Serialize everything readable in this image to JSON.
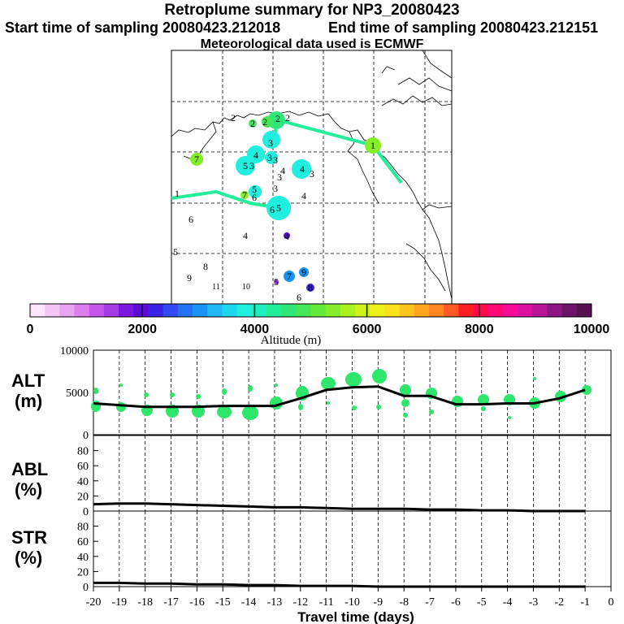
{
  "header": {
    "title": "Retroplume summary for NP3_20080423",
    "start_label": "Start time of sampling 20080423.212018",
    "end_label": "End time of sampling 20080423.212151",
    "met_label": "Meteorological data used is ECMWF"
  },
  "colorbar": {
    "ticks": [
      "0",
      "2000",
      "4000",
      "6000",
      "8000",
      "10000"
    ],
    "label": "Altitude (m)",
    "colors": [
      "#ffe6ff",
      "#f6c6f6",
      "#e9a4f1",
      "#dd7eee",
      "#c555ec",
      "#a33be6",
      "#7a18df",
      "#5a0bd6",
      "#3a22e6",
      "#2f4af2",
      "#2272f4",
      "#1a94f4",
      "#1fb8f2",
      "#1ed6ee",
      "#20eede",
      "#20f0be",
      "#22ee9a",
      "#2ee67a",
      "#46e658",
      "#64ea3a",
      "#86ee28",
      "#a8f21e",
      "#cef21a",
      "#eef01a",
      "#fbe01c",
      "#ffc41c",
      "#ffa61e",
      "#ff8622",
      "#ff5a26",
      "#ff1e22",
      "#ff0a4a",
      "#ff0878",
      "#f60c96",
      "#dc10a0",
      "#b61696",
      "#8e1482",
      "#6c1268",
      "#561050"
    ]
  },
  "map": {
    "labels": [
      {
        "t": "2",
        "x": 287,
        "y": 145
      },
      {
        "t": "2",
        "x": 311,
        "y": 152
      },
      {
        "t": "2",
        "x": 326,
        "y": 150
      },
      {
        "t": "2",
        "x": 342,
        "y": 146
      },
      {
        "t": "2",
        "x": 354,
        "y": 145
      },
      {
        "t": "1",
        "x": 459,
        "y": 179
      },
      {
        "t": "7",
        "x": 242,
        "y": 196
      },
      {
        "t": "3",
        "x": 333,
        "y": 176
      },
      {
        "t": "3",
        "x": 332,
        "y": 194
      },
      {
        "t": "3",
        "x": 339,
        "y": 197
      },
      {
        "t": "4",
        "x": 315,
        "y": 191
      },
      {
        "t": "5",
        "x": 302,
        "y": 204
      },
      {
        "t": "3",
        "x": 310,
        "y": 204
      },
      {
        "t": "4",
        "x": 348,
        "y": 210
      },
      {
        "t": "3",
        "x": 344,
        "y": 218
      },
      {
        "t": "4",
        "x": 372,
        "y": 208
      },
      {
        "t": "3",
        "x": 384,
        "y": 214
      },
      {
        "t": "1",
        "x": 218,
        "y": 238
      },
      {
        "t": "7",
        "x": 301,
        "y": 240
      },
      {
        "t": "5",
        "x": 313,
        "y": 233
      },
      {
        "t": "6",
        "x": 313,
        "y": 243
      },
      {
        "t": "3",
        "x": 339,
        "y": 232
      },
      {
        "t": "4",
        "x": 374,
        "y": 241
      },
      {
        "t": "6",
        "x": 335,
        "y": 258
      },
      {
        "t": "5",
        "x": 343,
        "y": 256
      },
      {
        "t": "6",
        "x": 235,
        "y": 270
      },
      {
        "t": "4",
        "x": 302,
        "y": 290
      },
      {
        "t": "4",
        "x": 353,
        "y": 291
      },
      {
        "t": "5",
        "x": 216,
        "y": 310
      },
      {
        "t": "8",
        "x": 253,
        "y": 328
      },
      {
        "t": "9",
        "x": 233,
        "y": 342
      },
      {
        "t": "9",
        "x": 374,
        "y": 335
      },
      {
        "t": "7",
        "x": 356,
        "y": 340
      },
      {
        "t": "11",
        "x": 266,
        "y": 352
      },
      {
        "t": "10",
        "x": 303,
        "y": 352
      },
      {
        "t": "5",
        "x": 340,
        "y": 347
      },
      {
        "t": "8",
        "x": 382,
        "y": 354
      },
      {
        "t": "6",
        "x": 368,
        "y": 366
      }
    ]
  },
  "panels": {
    "alt": {
      "label1": "ALT",
      "label2": "(m)",
      "ticks": [
        "10000",
        "5000",
        "0"
      ]
    },
    "abl": {
      "label1": "ABL",
      "label2": "(%)",
      "ticks": [
        "80",
        "60",
        "40",
        "20",
        "0"
      ]
    },
    "str": {
      "label1": "STR",
      "label2": "(%)",
      "ticks": [
        "80",
        "60",
        "40",
        "20",
        "0"
      ]
    }
  },
  "xaxis": {
    "title": "Travel time (days)",
    "ticks": [
      "-20",
      "-19",
      "-18",
      "-17",
      "-16",
      "-15",
      "-14",
      "-13",
      "-12",
      "-11",
      "-10",
      "-9",
      "-8",
      "-7",
      "-6",
      "-5",
      "-4",
      "-3",
      "-2",
      "-1",
      "0"
    ]
  },
  "chart_data": [
    {
      "type": "line",
      "title": "ALT",
      "xlabel": "Travel time (days)",
      "ylabel": "ALT (m)",
      "xlim": [
        -20,
        0
      ],
      "ylim": [
        0,
        10000
      ],
      "x": [
        -20,
        -19,
        -18,
        -17,
        -16,
        -15,
        -14,
        -13,
        -12,
        -11,
        -10,
        -9,
        -8,
        -7,
        -6,
        -5,
        -4,
        -3,
        -2,
        -1
      ],
      "series": [
        {
          "name": "mean altitude",
          "values": [
            3700,
            3500,
            3300,
            3300,
            3300,
            3400,
            3400,
            3400,
            4300,
            5300,
            5600,
            5700,
            4600,
            4600,
            3600,
            3600,
            3700,
            3700,
            4300,
            5300
          ]
        }
      ]
    },
    {
      "type": "line",
      "title": "ABL",
      "xlabel": "Travel time (days)",
      "ylabel": "ABL (%)",
      "xlim": [
        -20,
        0
      ],
      "ylim": [
        0,
        100
      ],
      "x": [
        -20,
        -19,
        -18,
        -17,
        -16,
        -15,
        -14,
        -13,
        -12,
        -11,
        -10,
        -9,
        -8,
        -7,
        -6,
        -5,
        -4,
        -3,
        -2,
        -1
      ],
      "series": [
        {
          "name": "ABL fraction",
          "values": [
            9,
            10,
            10,
            9,
            8,
            7,
            6,
            5,
            5,
            4,
            3,
            3,
            3,
            2,
            2,
            1,
            1,
            0,
            0,
            0
          ]
        }
      ]
    },
    {
      "type": "line",
      "title": "STR",
      "xlabel": "Travel time (days)",
      "ylabel": "STR (%)",
      "xlim": [
        -20,
        0
      ],
      "ylim": [
        0,
        100
      ],
      "x": [
        -20,
        -19,
        -18,
        -17,
        -16,
        -15,
        -14,
        -13,
        -12,
        -11,
        -10,
        -9,
        -8,
        -7,
        -6,
        -5,
        -4,
        -3,
        -2,
        -1
      ],
      "series": [
        {
          "name": "STR fraction",
          "values": [
            5,
            5,
            4,
            4,
            3,
            3,
            2,
            2,
            1,
            1,
            1,
            0,
            0,
            0,
            0,
            0,
            0,
            0,
            0,
            0
          ]
        }
      ]
    }
  ]
}
